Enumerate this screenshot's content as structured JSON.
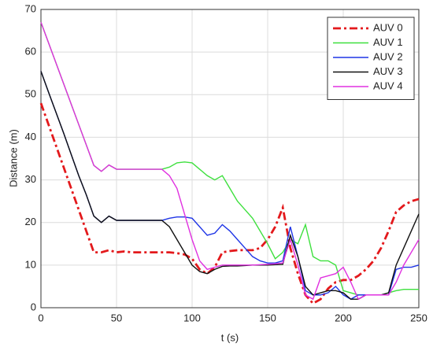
{
  "chart_data": {
    "type": "line",
    "xlabel": "t (s)",
    "ylabel": "Distance (m)",
    "x": [
      0,
      5,
      10,
      15,
      20,
      25,
      30,
      35,
      40,
      45,
      50,
      55,
      60,
      65,
      70,
      75,
      80,
      85,
      90,
      95,
      100,
      105,
      110,
      115,
      120,
      125,
      130,
      135,
      140,
      145,
      150,
      155,
      160,
      165,
      170,
      175,
      180,
      185,
      190,
      195,
      200,
      205,
      210,
      215,
      220,
      225,
      230,
      235,
      240,
      245,
      250
    ],
    "series": [
      {
        "name": "AUV 0",
        "color": "#e3191c",
        "style": "dashdot",
        "values": [
          48,
          43,
          38,
          33,
          28,
          23,
          18,
          13,
          13,
          13.5,
          13,
          13.2,
          13,
          13,
          13,
          13,
          13,
          13,
          12.8,
          12.5,
          11.5,
          9,
          8,
          9.5,
          13,
          13.3,
          13.5,
          13.5,
          13.5,
          14,
          16,
          19,
          23.5,
          14,
          8,
          3,
          1,
          2,
          4.5,
          6,
          6.5,
          6.5,
          7.5,
          9,
          11,
          14,
          18,
          22.5,
          24,
          25,
          25.5
        ]
      },
      {
        "name": "AUV 1",
        "color": "#3ee03e",
        "style": "solid",
        "values": [
          67,
          62.2,
          57.4,
          52.6,
          47.8,
          43,
          38.2,
          33.4,
          32,
          33.5,
          32.5,
          32.5,
          32.5,
          32.5,
          32.5,
          32.5,
          32.5,
          33,
          34,
          34.2,
          34,
          32.5,
          31,
          30,
          31,
          28,
          25,
          23,
          21,
          18,
          15,
          11.5,
          13,
          16,
          15,
          19.5,
          12,
          11,
          11,
          10,
          4,
          3.5,
          3,
          3,
          3,
          3,
          3.5,
          4,
          4.3,
          4.3,
          4.3
        ]
      },
      {
        "name": "AUV 2",
        "color": "#1f35e6",
        "style": "solid",
        "values": [
          55.5,
          50.6,
          45.8,
          41,
          36,
          31,
          26.5,
          21.5,
          20,
          21.5,
          20.5,
          20.5,
          20.5,
          20.5,
          20.5,
          20.5,
          20.5,
          21,
          21.3,
          21.3,
          21,
          19,
          17,
          17.5,
          19.5,
          18,
          16,
          14,
          12,
          11,
          10.5,
          10.5,
          11,
          19,
          12,
          4,
          3,
          3,
          3.5,
          5,
          3,
          2,
          3,
          3,
          3,
          3,
          3,
          9,
          9.5,
          9.5,
          10
        ]
      },
      {
        "name": "AUV 3",
        "color": "#111111",
        "style": "solid",
        "values": [
          55.5,
          50.6,
          45.8,
          41,
          36,
          31,
          26.5,
          21.5,
          20,
          21.5,
          20.5,
          20.5,
          20.5,
          20.5,
          20.5,
          20.5,
          20.5,
          19,
          16,
          13,
          10,
          8.5,
          8,
          9,
          9.7,
          9.8,
          9.8,
          9.9,
          10,
          10,
          10,
          10.1,
          10.2,
          17,
          12,
          5,
          3,
          3.5,
          4,
          4,
          3.5,
          2,
          2,
          3,
          3,
          3,
          3.5,
          10,
          14,
          18,
          22
        ]
      },
      {
        "name": "AUV 4",
        "color": "#e030e0",
        "style": "solid",
        "values": [
          67,
          62.2,
          57.4,
          52.6,
          47.8,
          43,
          38.2,
          33.4,
          32,
          33.5,
          32.5,
          32.5,
          32.5,
          32.5,
          32.5,
          32.5,
          32.5,
          31,
          28,
          22,
          16,
          11,
          9,
          9.5,
          10,
          10,
          10,
          10,
          10,
          10.1,
          10.2,
          10.3,
          10.5,
          16,
          10,
          3,
          2,
          7,
          7.5,
          8,
          9.5,
          6,
          2,
          3,
          3,
          3,
          3,
          6,
          10,
          13,
          16
        ]
      }
    ],
    "xlim": [
      0,
      250
    ],
    "xticks": [
      0,
      50,
      100,
      150,
      200,
      250
    ],
    "ylim": [
      0,
      70
    ],
    "yticks": [
      0,
      10,
      20,
      30,
      40,
      50,
      60,
      70
    ],
    "grid": true,
    "legend": "upper right"
  }
}
